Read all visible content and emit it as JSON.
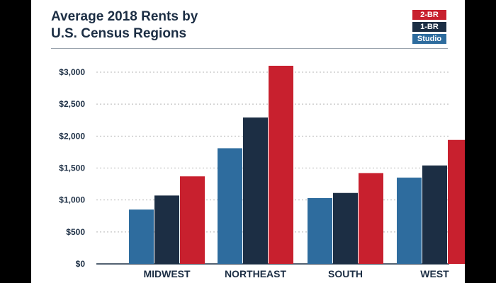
{
  "title_line1": "Average 2018 Rents by",
  "title_line2": "U.S. Census Regions",
  "chart_data": {
    "type": "bar",
    "title": "Average 2018 Rents by U.S. Census Regions",
    "categories": [
      "MIDWEST",
      "NORTHEAST",
      "SOUTH",
      "WEST"
    ],
    "series": [
      {
        "name": "Studio",
        "color": "#2e6c9e",
        "values": [
          850,
          1810,
          1030,
          1350
        ]
      },
      {
        "name": "1-BR",
        "color": "#1c2e44",
        "values": [
          1070,
          2290,
          1110,
          1540
        ]
      },
      {
        "name": "2-BR",
        "color": "#c8202e",
        "values": [
          1370,
          3100,
          1420,
          1940
        ]
      }
    ],
    "ylim": [
      0,
      3000
    ],
    "yticks": [
      0,
      500,
      1000,
      1500,
      2000,
      2500,
      3000
    ],
    "ytick_labels": [
      "$0",
      "$500",
      "$1,000",
      "$1,500",
      "$2,000",
      "$2,500",
      "$3,000"
    ],
    "grid": true,
    "legend_position": "top-right"
  },
  "legend": [
    {
      "label": "2-BR",
      "color": "#c8202e"
    },
    {
      "label": "1-BR",
      "color": "#1c2e44"
    },
    {
      "label": "Studio",
      "color": "#2e6c9e"
    }
  ]
}
